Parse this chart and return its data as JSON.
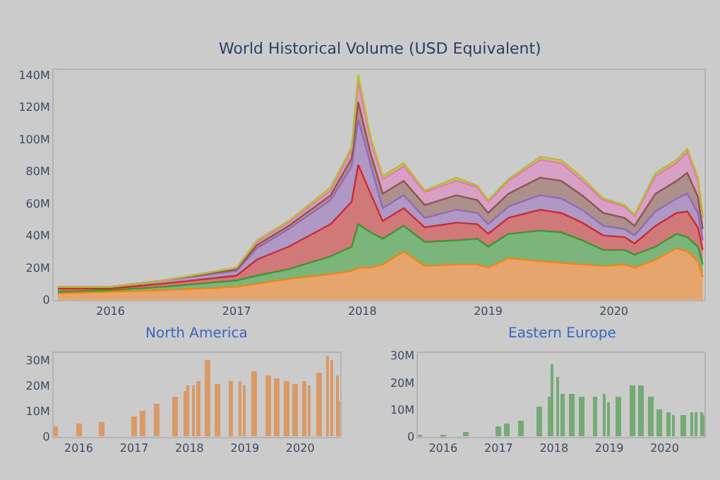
{
  "chart_data": [
    {
      "type": "area",
      "stacked": true,
      "title": "World Historical Volume (USD Equivalent)",
      "x": [
        "2015-08",
        "2016-01",
        "2016-06",
        "2017-01",
        "2017-03",
        "2017-06",
        "2017-10",
        "2017-12",
        "2017-12-20",
        "2018-01-25",
        "2018-03",
        "2018-05",
        "2018-07",
        "2018-10",
        "2018-12",
        "2019-01",
        "2019-03",
        "2019-06",
        "2019-08",
        "2019-10",
        "2019-12",
        "2020-02",
        "2020-03",
        "2020-05",
        "2020-07",
        "2020-08",
        "2020-09",
        "2020-09-15"
      ],
      "series": [
        {
          "color": "#ff7f0e",
          "values": [
            4,
            5,
            6,
            8,
            10,
            13,
            16,
            18,
            20,
            20,
            22,
            30,
            21,
            22,
            22,
            20,
            26,
            24,
            23,
            22,
            21,
            22,
            20,
            25,
            32,
            30,
            24,
            14
          ]
        },
        {
          "color": "#2ca02c",
          "values": [
            1,
            1,
            2,
            4,
            5,
            6,
            11,
            15,
            27,
            22,
            16,
            16,
            15,
            15,
            16,
            13,
            15,
            19,
            19,
            15,
            10,
            9,
            8,
            8,
            9,
            9,
            9,
            8
          ]
        },
        {
          "color": "#d62728",
          "values": [
            2,
            1,
            2,
            3,
            10,
            14,
            20,
            28,
            37,
            24,
            11,
            11,
            9,
            11,
            9,
            8,
            10,
            13,
            12,
            11,
            9,
            8,
            7,
            13,
            13,
            16,
            12,
            9
          ]
        },
        {
          "color": "#9467bd",
          "values": [
            1,
            1,
            2,
            3,
            7,
            11,
            15,
            22,
            28,
            18,
            8,
            8,
            6,
            8,
            7,
            6,
            7,
            9,
            9,
            8,
            6,
            5,
            5,
            9,
            9,
            11,
            9,
            6
          ]
        },
        {
          "color": "#8c564b",
          "values": [
            0,
            0,
            0,
            1,
            2,
            2,
            3,
            5,
            11,
            7,
            9,
            9,
            8,
            9,
            8,
            7,
            8,
            11,
            11,
            9,
            8,
            7,
            6,
            11,
            11,
            13,
            10,
            7
          ]
        },
        {
          "color": "#e377c2",
          "values": [
            0,
            0,
            0,
            1,
            2,
            2,
            3,
            5,
            13,
            8,
            9,
            9,
            8,
            9,
            8,
            7,
            8,
            11,
            11,
            9,
            8,
            7,
            6,
            11,
            11,
            13,
            10,
            7
          ]
        },
        {
          "color": "#bcbd22",
          "values": [
            0,
            0,
            0,
            0,
            1,
            1,
            2,
            2,
            4,
            2,
            2,
            2,
            1,
            2,
            1,
            1,
            1,
            2,
            2,
            2,
            1,
            1,
            1,
            2,
            2,
            2,
            2,
            1
          ]
        }
      ],
      "xlim": [
        "2015-07-20",
        "2020-09-20"
      ],
      "xticks": [
        "2016",
        "2017",
        "2018",
        "2019",
        "2020"
      ],
      "ylim": [
        0,
        143
      ],
      "yticks": [
        0,
        {
          "value": 20,
          "label": "20M"
        },
        {
          "value": 40,
          "label": "40M"
        },
        {
          "value": 60,
          "label": "60M"
        },
        {
          "value": 80,
          "label": "80M"
        },
        {
          "value": 100,
          "label": "100M"
        },
        {
          "value": 120,
          "label": "120M"
        },
        {
          "value": 140,
          "label": "140M"
        }
      ],
      "grid": false
    },
    {
      "type": "bar",
      "title": "North America",
      "x": [
        "2015-08",
        "2016-01",
        "2016-06",
        "2017-01",
        "2017-03",
        "2017-06",
        "2017-10",
        "2017-12",
        "2017-12-20",
        "2018-01-25",
        "2018-03",
        "2018-05",
        "2018-07",
        "2018-10",
        "2018-12",
        "2019-01",
        "2019-03",
        "2019-06",
        "2019-08",
        "2019-10",
        "2019-12",
        "2020-02",
        "2020-03",
        "2020-05",
        "2020-07",
        "2020-08",
        "2020-09",
        "2020-09-15"
      ],
      "values": [
        4,
        5,
        6,
        8,
        10,
        13,
        16,
        18,
        20,
        20,
        22,
        30,
        21,
        22,
        22,
        20,
        26,
        24,
        23,
        22,
        21,
        22,
        20,
        25,
        32,
        30,
        24,
        14
      ],
      "color": "#d99a66",
      "xlim": [
        "2015-07-20",
        "2020-09-20"
      ],
      "xticks": [
        "2016",
        "2017",
        "2018",
        "2019",
        "2020"
      ],
      "ylim": [
        0,
        33
      ],
      "yticks": [
        0,
        {
          "value": 10,
          "label": "10M"
        },
        {
          "value": 20,
          "label": "20M"
        },
        {
          "value": 30,
          "label": "30M"
        }
      ],
      "grid": false
    },
    {
      "type": "bar",
      "title": "Eastern Europe",
      "x": [
        "2015-08",
        "2016-01",
        "2016-06",
        "2017-01",
        "2017-03",
        "2017-06",
        "2017-10",
        "2017-12",
        "2017-12-20",
        "2018-01-25",
        "2018-03",
        "2018-05",
        "2018-07",
        "2018-10",
        "2018-12",
        "2019-01",
        "2019-03",
        "2019-06",
        "2019-08",
        "2019-10",
        "2019-12",
        "2020-02",
        "2020-03",
        "2020-05",
        "2020-07",
        "2020-08",
        "2020-09",
        "2020-09-15"
      ],
      "values": [
        1,
        1,
        2,
        4,
        5,
        6,
        11,
        15,
        27,
        22,
        16,
        16,
        15,
        15,
        16,
        13,
        15,
        19,
        19,
        15,
        10,
        9,
        8,
        8,
        9,
        9,
        9,
        8
      ],
      "color": "#74ab74",
      "xlim": [
        "2015-07-20",
        "2020-09-20"
      ],
      "xticks": [
        "2016",
        "2017",
        "2018",
        "2019",
        "2020"
      ],
      "ylim": [
        0,
        31
      ],
      "yticks": [
        0,
        {
          "value": 10,
          "label": "10M"
        },
        {
          "value": 20,
          "label": "20M"
        },
        {
          "value": 30,
          "label": "30M"
        }
      ],
      "grid": false
    }
  ]
}
